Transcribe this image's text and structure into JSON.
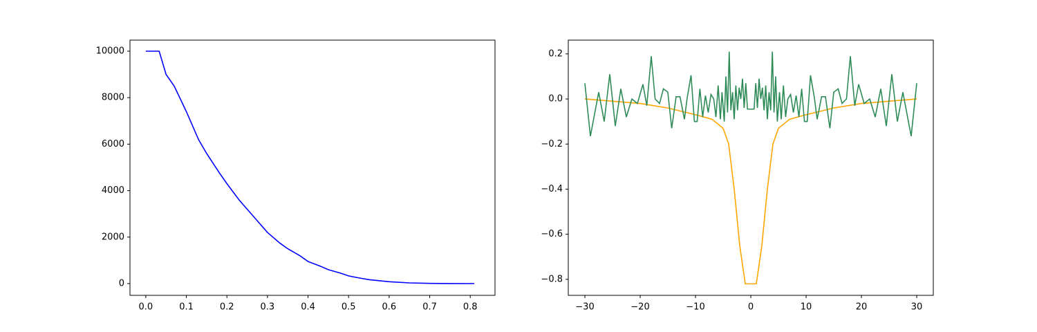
{
  "chart_data": [
    {
      "type": "line",
      "xlim": [
        -0.039,
        0.861
      ],
      "ylim": [
        -506,
        10476
      ],
      "xticks": [
        {
          "value": 0,
          "label": "0.0"
        },
        {
          "value": 0.1,
          "label": "0.1"
        },
        {
          "value": 0.2,
          "label": "0.2"
        },
        {
          "value": 0.3,
          "label": "0.3"
        },
        {
          "value": 0.4,
          "label": "0.4"
        },
        {
          "value": 0.5,
          "label": "0.5"
        },
        {
          "value": 0.6,
          "label": "0.6"
        },
        {
          "value": 0.7,
          "label": "0.7"
        },
        {
          "value": 0.8,
          "label": "0.8"
        }
      ],
      "yticks": [
        0,
        2000,
        4000,
        6000,
        8000,
        10000
      ],
      "series": [
        {
          "color": "#0000ff",
          "x": [
            0,
            0.033,
            0.05,
            0.07,
            0.1,
            0.13,
            0.15,
            0.18,
            0.2,
            0.23,
            0.25,
            0.28,
            0.3,
            0.33,
            0.35,
            0.38,
            0.4,
            0.43,
            0.45,
            0.48,
            0.5,
            0.53,
            0.55,
            0.6,
            0.65,
            0.7,
            0.75,
            0.81
          ],
          "values": [
            10000,
            10000,
            9000,
            8500,
            7400,
            6200,
            5600,
            4800,
            4300,
            3600,
            3200,
            2600,
            2200,
            1750,
            1500,
            1200,
            950,
            750,
            600,
            450,
            330,
            230,
            170,
            80,
            30,
            10,
            3,
            0
          ]
        }
      ]
    },
    {
      "type": "line",
      "xlim": [
        -33,
        33
      ],
      "ylim": [
        -0.871,
        0.261
      ],
      "xticks": [
        {
          "value": -30,
          "label": "−30"
        },
        {
          "value": -20,
          "label": "−20"
        },
        {
          "value": -10,
          "label": "−10"
        },
        0,
        10,
        20,
        30
      ],
      "yticks": [
        {
          "value": -0.8,
          "label": "−0.8"
        },
        {
          "value": -0.6,
          "label": "−0.6"
        },
        {
          "value": -0.4,
          "label": "−0.4"
        },
        {
          "value": -0.2,
          "label": "−0.2"
        },
        {
          "value": 0,
          "label": "0.0"
        },
        0.2
      ],
      "series": [
        {
          "color": "#ffa500",
          "x": [
            -30,
            -25,
            -20,
            -15,
            -10,
            -7,
            -5,
            -4,
            -3,
            -2,
            -1,
            1,
            2,
            3,
            4,
            5,
            7,
            10,
            15,
            20,
            25,
            30
          ],
          "values": [
            0,
            -0.01,
            -0.02,
            -0.04,
            -0.07,
            -0.09,
            -0.13,
            -0.2,
            -0.4,
            -0.65,
            -0.82,
            -0.82,
            -0.65,
            -0.4,
            -0.2,
            -0.13,
            -0.09,
            -0.07,
            -0.04,
            -0.02,
            -0.01,
            0
          ]
        },
        {
          "color": "#2e8b57",
          "x": [
            -30,
            -29,
            -27.5,
            -26.5,
            -25.5,
            -24.5,
            -23.5,
            -22.5,
            -21.5,
            -20.5,
            -19.5,
            -18.8,
            -18,
            -17.3,
            -16.5,
            -15.8,
            -15,
            -14.3,
            -13.5,
            -12.8,
            -12,
            -11.5,
            -10.8,
            -10.2,
            -9.7,
            -9.2,
            -8.7,
            -8.2,
            -7.7,
            -7.2,
            -6.7,
            -6.3,
            -5.9,
            -5.5,
            -5.2,
            -4.8,
            -4.5,
            -4.2,
            -3.9,
            -3.6,
            -3.3,
            -3,
            -2.7,
            -2.4,
            -2.1,
            -1.8,
            -1.5,
            -1.2,
            -0.9,
            -0.6,
            0.6,
            0.9,
            1.2,
            1.5,
            1.8,
            2.1,
            2.4,
            2.7,
            3,
            3.3,
            3.6,
            3.9,
            4.2,
            4.5,
            4.8,
            5.2,
            5.5,
            5.9,
            6.3,
            6.7,
            7.2,
            7.7,
            8.2,
            8.7,
            9.2,
            9.7,
            10.2,
            10.8,
            11.5,
            12,
            12.8,
            13.5,
            14.3,
            15,
            15.8,
            16.5,
            17.3,
            18,
            18.8,
            19.5,
            20.5,
            21.5,
            22.5,
            23.5,
            24.5,
            25.5,
            26.5,
            27.5,
            29,
            30
          ],
          "values": [
            0.07,
            -0.165,
            0.03,
            -0.1,
            0.11,
            -0.12,
            0.045,
            -0.08,
            0,
            -0.02,
            0.065,
            -0.03,
            0.19,
            0,
            -0.02,
            0.045,
            0.03,
            -0.13,
            0.01,
            0.01,
            -0.09,
            0.005,
            0.105,
            -0.1,
            -0.1,
            0.045,
            -0.08,
            0.015,
            -0.06,
            0.02,
            0,
            -0.08,
            0.06,
            -0.09,
            0.03,
            -0.1,
            0.1,
            -0.06,
            0.21,
            -0.05,
            0.03,
            -0.09,
            0.06,
            -0.05,
            0.05,
            0,
            0.09,
            -0.04,
            0.07,
            -0.045,
            -0.045,
            0.07,
            -0.04,
            0.09,
            0,
            0.05,
            -0.05,
            0.06,
            -0.09,
            0.03,
            -0.05,
            0.21,
            -0.06,
            0.1,
            -0.1,
            0.03,
            -0.09,
            0.06,
            -0.08,
            0,
            0.02,
            -0.06,
            0.015,
            -0.08,
            0.045,
            -0.1,
            -0.1,
            0.105,
            0.005,
            -0.09,
            0.01,
            0.01,
            -0.13,
            0.03,
            0.045,
            -0.02,
            0,
            0.19,
            -0.03,
            0.065,
            -0.02,
            0,
            -0.08,
            0.045,
            -0.12,
            0.11,
            -0.1,
            0.03,
            -0.165,
            0.07
          ]
        }
      ]
    }
  ]
}
